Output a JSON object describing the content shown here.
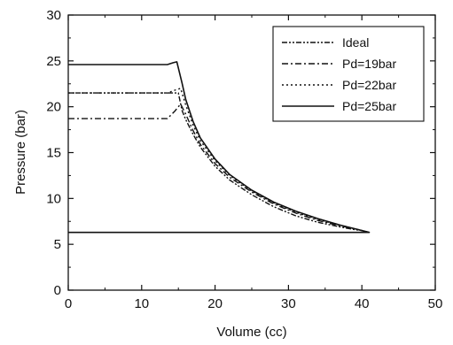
{
  "chart_data": {
    "type": "line",
    "title": "",
    "xlabel": "Volume (cc)",
    "ylabel": "Pressure (bar)",
    "xlim": [
      0,
      50
    ],
    "ylim": [
      0,
      30
    ],
    "x_ticks": [
      0,
      10,
      20,
      30,
      40,
      50
    ],
    "y_ticks": [
      0,
      5,
      10,
      15,
      20,
      25,
      30
    ],
    "grid": false,
    "legend_position": "top-right",
    "series": [
      {
        "name": "Ideal",
        "style": "dash-dot-dot",
        "color": "#111111",
        "x": [
          0,
          14.5,
          15,
          15.5,
          16,
          17,
          18,
          20,
          22,
          25,
          28,
          31,
          34,
          37,
          39,
          40,
          41,
          41,
          0
        ],
        "y": [
          21.5,
          21.5,
          21.5,
          19.6,
          18.6,
          17.0,
          15.6,
          13.5,
          12.0,
          10.4,
          9.1,
          8.1,
          7.4,
          6.9,
          6.6,
          6.5,
          6.3,
          6.3,
          6.3
        ]
      },
      {
        "name": "Pd=19bar",
        "style": "dash-dot",
        "color": "#111111",
        "x": [
          0,
          13.5,
          14.5,
          15.3,
          16,
          17,
          18,
          20,
          22,
          25,
          28,
          31,
          34,
          37,
          39,
          40,
          41
        ],
        "y": [
          18.7,
          18.7,
          19.5,
          20.3,
          19.2,
          17.4,
          15.9,
          13.8,
          12.3,
          10.7,
          9.4,
          8.4,
          7.6,
          7.0,
          6.7,
          6.5,
          6.3
        ]
      },
      {
        "name": "Pd=22bar",
        "style": "dotted",
        "color": "#111111",
        "x": [
          0,
          13.5,
          14.5,
          15.3,
          16,
          17,
          18,
          20,
          22,
          25,
          28,
          31,
          34,
          37,
          39,
          40,
          41
        ],
        "y": [
          21.5,
          21.5,
          21.8,
          22.0,
          20.2,
          18.0,
          16.3,
          14.1,
          12.5,
          10.8,
          9.5,
          8.5,
          7.7,
          7.1,
          6.7,
          6.5,
          6.3
        ]
      },
      {
        "name": "Pd=25bar",
        "style": "solid",
        "color": "#111111",
        "x": [
          0,
          13.5,
          14.3,
          14.8,
          15.5,
          16,
          17,
          18,
          20,
          22,
          25,
          28,
          31,
          34,
          37,
          39,
          40,
          41,
          41,
          0
        ],
        "y": [
          24.6,
          24.6,
          24.8,
          24.9,
          22.6,
          20.8,
          18.4,
          16.6,
          14.3,
          12.6,
          10.9,
          9.6,
          8.6,
          7.8,
          7.1,
          6.7,
          6.5,
          6.3,
          6.3,
          6.3
        ]
      }
    ]
  }
}
